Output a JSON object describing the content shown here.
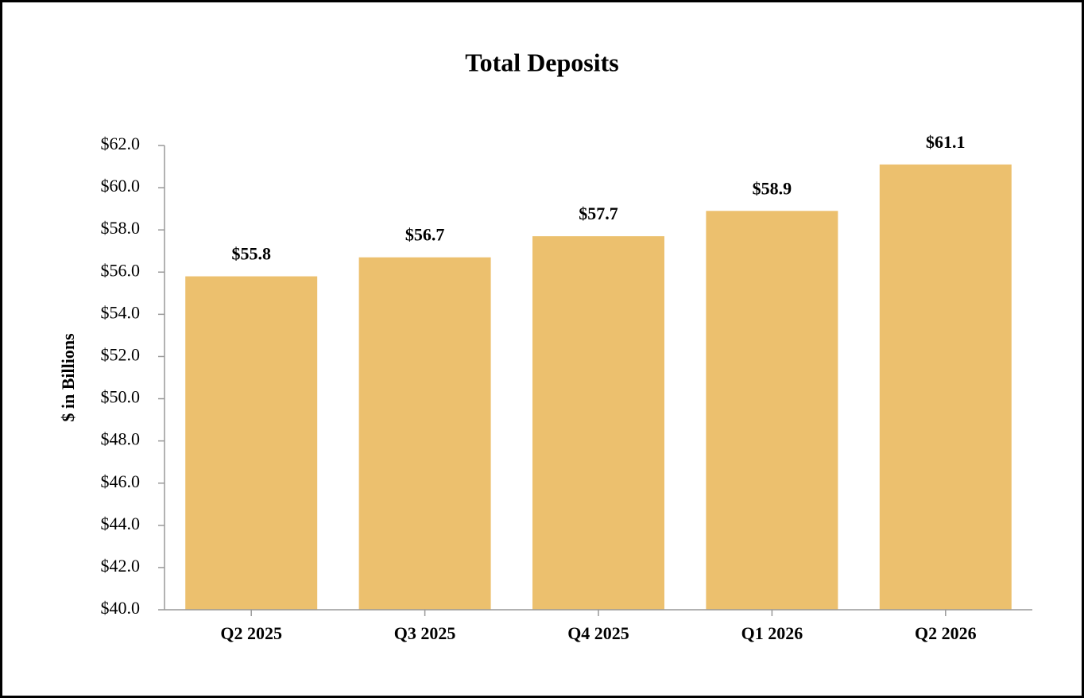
{
  "chart_data": {
    "type": "bar",
    "title": "Total Deposits",
    "y_label": "$ in Billions",
    "categories": [
      "Q2 2025",
      "Q3 2025",
      "Q4 2025",
      "Q1 2026",
      "Q2 2026"
    ],
    "values": [
      55.8,
      56.7,
      57.7,
      58.9,
      61.1
    ],
    "value_labels": [
      "$55.8",
      "$56.7",
      "$57.7",
      "$58.9",
      "$61.1"
    ],
    "color": "#ecc06e",
    "ylim": [
      40,
      62
    ],
    "yticks": [
      {
        "value": 40,
        "label": "$40.0"
      },
      {
        "value": 42,
        "label": "$42.0"
      },
      {
        "value": 44,
        "label": "$44.0"
      },
      {
        "value": 46,
        "label": "$46.0"
      },
      {
        "value": 48,
        "label": "$48.0"
      },
      {
        "value": 50,
        "label": "$50.0"
      },
      {
        "value": 52,
        "label": "$52.0"
      },
      {
        "value": 54,
        "label": "$54.0"
      },
      {
        "value": 56,
        "label": "$56.0"
      },
      {
        "value": 58,
        "label": "$58.0"
      },
      {
        "value": 60,
        "label": "$60.0"
      },
      {
        "value": 62,
        "label": "$62.0"
      }
    ],
    "grid": false
  }
}
